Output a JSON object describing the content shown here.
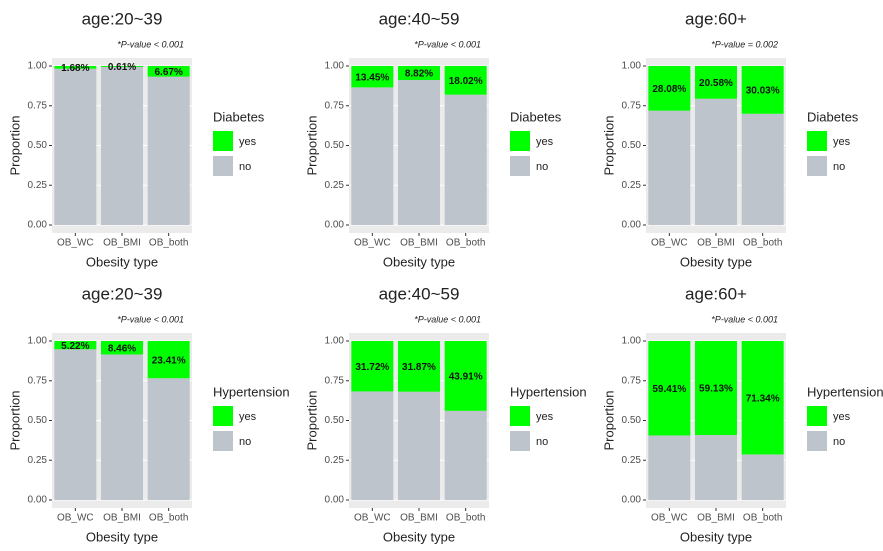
{
  "chart_data": [
    {
      "type": "bar",
      "stacked": true,
      "title": "age:20~39",
      "subtitle": "*P-value < 0.001",
      "x_label": "Obesity type",
      "y_label": "Proportion",
      "legend_title": "Diabetes",
      "legend": "right",
      "categories": [
        "OB_WC",
        "OB_BMI",
        "OB_both"
      ],
      "series": [
        {
          "name": "yes",
          "color": "#00ff00",
          "values": [
            0.0168,
            0.0061,
            0.0667
          ],
          "value_labels": [
            "1.68%",
            "0.61%",
            "6.67%"
          ]
        },
        {
          "name": "no",
          "color": "#bec4cb",
          "values": [
            0.9832,
            0.9939,
            0.9333
          ]
        }
      ],
      "ylim": [
        0,
        1
      ],
      "yticks": [
        {
          "value": 0,
          "label": "0.00"
        },
        0.25,
        {
          "value": 0.5,
          "label": "0.50"
        },
        0.75,
        {
          "value": 1,
          "label": "1.00"
        }
      ],
      "grid": true
    },
    {
      "type": "bar",
      "stacked": true,
      "title": "age:40~59",
      "subtitle": "*P-value < 0.001",
      "x_label": "Obesity type",
      "y_label": "Proportion",
      "legend_title": "Diabetes",
      "legend": "right",
      "categories": [
        "OB_WC",
        "OB_BMI",
        "OB_both"
      ],
      "series": [
        {
          "name": "yes",
          "color": "#00ff00",
          "values": [
            0.1345,
            0.0882,
            0.1802
          ],
          "value_labels": [
            "13.45%",
            "8.82%",
            "18.02%"
          ]
        },
        {
          "name": "no",
          "color": "#bec4cb",
          "values": [
            0.8655,
            0.9118,
            0.8198
          ]
        }
      ],
      "ylim": [
        0,
        1
      ],
      "yticks": [
        {
          "value": 0,
          "label": "0.00"
        },
        0.25,
        {
          "value": 0.5,
          "label": "0.50"
        },
        0.75,
        {
          "value": 1,
          "label": "1.00"
        }
      ],
      "grid": true
    },
    {
      "type": "bar",
      "stacked": true,
      "title": "age:60+",
      "subtitle": "*P-value = 0.002",
      "x_label": "Obesity type",
      "y_label": "Proportion",
      "legend_title": "Diabetes",
      "legend": "right",
      "categories": [
        "OB_WC",
        "OB_BMI",
        "OB_both"
      ],
      "series": [
        {
          "name": "yes",
          "color": "#00ff00",
          "values": [
            0.2808,
            0.2058,
            0.3003
          ],
          "value_labels": [
            "28.08%",
            "20.58%",
            "30.03%"
          ]
        },
        {
          "name": "no",
          "color": "#bec4cb",
          "values": [
            0.7192,
            0.7942,
            0.6997
          ]
        }
      ],
      "ylim": [
        0,
        1
      ],
      "yticks": [
        {
          "value": 0,
          "label": "0.00"
        },
        0.25,
        {
          "value": 0.5,
          "label": "0.50"
        },
        0.75,
        {
          "value": 1,
          "label": "1.00"
        }
      ],
      "grid": true
    },
    {
      "type": "bar",
      "stacked": true,
      "title": "age:20~39",
      "subtitle": "*P-value < 0.001",
      "x_label": "Obesity type",
      "y_label": "Proportion",
      "legend_title": "Hypertension",
      "legend": "right",
      "categories": [
        "OB_WC",
        "OB_BMI",
        "OB_both"
      ],
      "series": [
        {
          "name": "yes",
          "color": "#00ff00",
          "values": [
            0.0522,
            0.0846,
            0.2341
          ],
          "value_labels": [
            "5.22%",
            "8.46%",
            "23.41%"
          ]
        },
        {
          "name": "no",
          "color": "#bec4cb",
          "values": [
            0.9478,
            0.9154,
            0.7659
          ]
        }
      ],
      "ylim": [
        0,
        1
      ],
      "yticks": [
        {
          "value": 0,
          "label": "0.00"
        },
        0.25,
        {
          "value": 0.5,
          "label": "0.50"
        },
        0.75,
        {
          "value": 1,
          "label": "1.00"
        }
      ],
      "grid": true
    },
    {
      "type": "bar",
      "stacked": true,
      "title": "age:40~59",
      "subtitle": "*P-value < 0.001",
      "x_label": "Obesity type",
      "y_label": "Proportion",
      "legend_title": "Hypertension",
      "legend": "right",
      "categories": [
        "OB_WC",
        "OB_BMI",
        "OB_both"
      ],
      "series": [
        {
          "name": "yes",
          "color": "#00ff00",
          "values": [
            0.3172,
            0.3187,
            0.4391
          ],
          "value_labels": [
            "31.72%",
            "31.87%",
            "43.91%"
          ]
        },
        {
          "name": "no",
          "color": "#bec4cb",
          "values": [
            0.6828,
            0.6813,
            0.5609
          ]
        }
      ],
      "ylim": [
        0,
        1
      ],
      "yticks": [
        {
          "value": 0,
          "label": "0.00"
        },
        0.25,
        {
          "value": 0.5,
          "label": "0.50"
        },
        0.75,
        {
          "value": 1,
          "label": "1.00"
        }
      ],
      "grid": true
    },
    {
      "type": "bar",
      "stacked": true,
      "title": "age:60+",
      "subtitle": "*P-value < 0.001",
      "x_label": "Obesity type",
      "y_label": "Proportion",
      "legend_title": "Hypertension",
      "legend": "right",
      "categories": [
        "OB_WC",
        "OB_BMI",
        "OB_both"
      ],
      "series": [
        {
          "name": "yes",
          "color": "#00ff00",
          "values": [
            0.5941,
            0.5913,
            0.7134
          ],
          "value_labels": [
            "59.41%",
            "59.13%",
            "71.34%"
          ]
        },
        {
          "name": "no",
          "color": "#bec4cb",
          "values": [
            0.4059,
            0.4087,
            0.2866
          ]
        }
      ],
      "ylim": [
        0,
        1
      ],
      "yticks": [
        {
          "value": 0,
          "label": "0.00"
        },
        0.25,
        {
          "value": 0.5,
          "label": "0.50"
        },
        0.75,
        {
          "value": 1,
          "label": "1.00"
        }
      ],
      "grid": true
    }
  ]
}
